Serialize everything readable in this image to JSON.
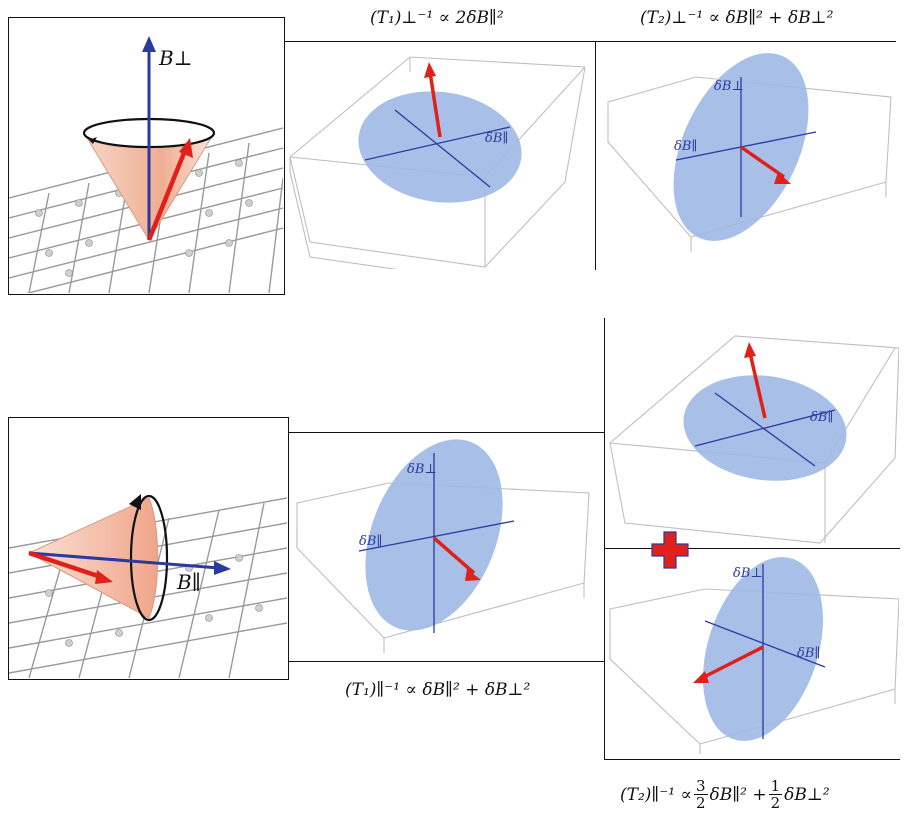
{
  "equations": {
    "t1_perp": "(T₁)⊥⁻¹ ∝ 2δB∥²",
    "t2_perp": "(T₂)⊥⁻¹ ∝ δB∥² + δB⊥²",
    "t1_par": "(T₁)∥⁻¹ ∝ δB∥² + δB⊥²",
    "t2_par_lhs": "(T₂)∥⁻¹ ∝",
    "t2_par_frac1_num": "3",
    "t2_par_frac1_den": "2",
    "t2_par_term1": "δB∥² +",
    "t2_par_frac2_num": "1",
    "t2_par_frac2_den": "2",
    "t2_par_term2": "δB⊥²"
  },
  "labels": {
    "b_perp": "B⊥",
    "b_par": "B∥",
    "db_perp": "δB⊥",
    "db_par": "δB∥"
  },
  "colors": {
    "field_arrow": "#2b3aa0",
    "spin_arrow": "#e0201a",
    "disk": "#9fb8e6",
    "cone": "#f2b9a0",
    "plus": "#e0201a"
  }
}
